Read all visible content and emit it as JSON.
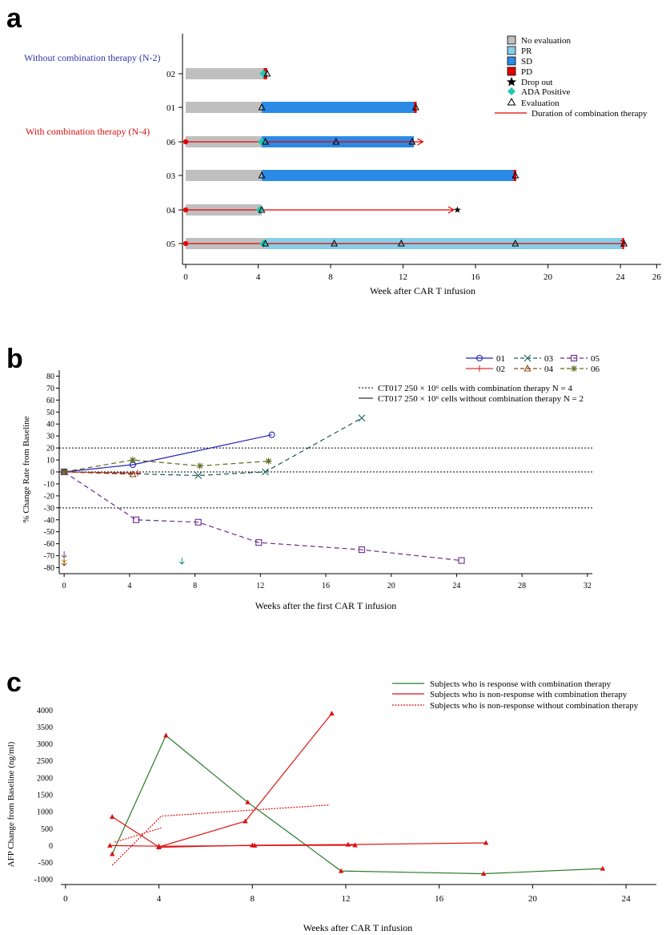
{
  "chart_data": [
    {
      "panel": "a",
      "type": "swimmer",
      "panel_label": "a",
      "xlabel": "Week after CAR T infusion",
      "xticks": [
        0,
        4,
        8,
        12,
        16,
        20,
        24,
        26
      ],
      "xlim": [
        0,
        26
      ],
      "group_labels": [
        {
          "text": "Without combination therapy (N-2)",
          "color": "#3333aa"
        },
        {
          "text": "With combination therapy (N-4)",
          "color": "#dd1111"
        }
      ],
      "legend": [
        {
          "label": "No evaluation",
          "color": "#bfbfbf",
          "kind": "box"
        },
        {
          "label": "PR",
          "color": "#87cee6",
          "kind": "box"
        },
        {
          "label": "SD",
          "color": "#2b8ae6",
          "kind": "box"
        },
        {
          "label": "PD",
          "color": "#e60000",
          "kind": "box"
        },
        {
          "label": "Drop out",
          "color": "#000000",
          "kind": "star"
        },
        {
          "label": "ADA Positive",
          "color": "#1ec8b4",
          "kind": "diamond"
        },
        {
          "label": "Evaluation",
          "color": "#000000",
          "kind": "triangle"
        },
        {
          "label": "Duration of combination therapy",
          "color": "#e60000",
          "kind": "line"
        }
      ],
      "subjects": [
        {
          "id": "02",
          "segments": [
            {
              "status": "No evaluation",
              "start": 0,
              "end": 4.3
            },
            {
              "status": "PD",
              "start": 4.3,
              "end": 4.5
            }
          ],
          "evaluations": [
            4.5
          ],
          "ada": [
            4.3
          ],
          "dropout": null,
          "combo": null
        },
        {
          "id": "01",
          "segments": [
            {
              "status": "No evaluation",
              "start": 0,
              "end": 4.2
            },
            {
              "status": "SD",
              "start": 4.2,
              "end": 12.6
            },
            {
              "status": "PD",
              "start": 12.6,
              "end": 12.75
            }
          ],
          "evaluations": [
            4.2,
            12.7
          ],
          "ada": [],
          "dropout": null,
          "combo": null
        },
        {
          "id": "06",
          "segments": [
            {
              "status": "No evaluation",
              "start": 0,
              "end": 4.2
            },
            {
              "status": "SD",
              "start": 4.2,
              "end": 12.6
            }
          ],
          "evaluations": [
            4.4,
            8.3,
            12.5
          ],
          "ada": [
            4.2
          ],
          "dropout": null,
          "combo": [
            0,
            13.1
          ]
        },
        {
          "id": "03",
          "segments": [
            {
              "status": "No evaluation",
              "start": 0,
              "end": 4.2
            },
            {
              "status": "SD",
              "start": 4.2,
              "end": 18.1
            },
            {
              "status": "PD",
              "start": 18.1,
              "end": 18.25
            }
          ],
          "evaluations": [
            4.2,
            18.2
          ],
          "ada": [],
          "dropout": null,
          "combo": null
        },
        {
          "id": "04",
          "segments": [
            {
              "status": "No evaluation",
              "start": 0,
              "end": 4.2
            }
          ],
          "evaluations": [
            4.2
          ],
          "ada": [
            4.1
          ],
          "dropout": 15.0,
          "combo": [
            0,
            14.8
          ]
        },
        {
          "id": "05",
          "segments": [
            {
              "status": "No evaluation",
              "start": 0,
              "end": 4.4
            },
            {
              "status": "PR",
              "start": 4.4,
              "end": 24.1
            },
            {
              "status": "PD",
              "start": 24.1,
              "end": 24.2
            }
          ],
          "evaluations": [
            4.4,
            8.2,
            11.9,
            18.2,
            24.2
          ],
          "ada": [
            4.3
          ],
          "dropout": null,
          "combo": [
            0,
            24.3
          ]
        }
      ]
    },
    {
      "panel": "b",
      "type": "line",
      "panel_label": "b",
      "xlabel": "Weeks after the first CAR T infusion",
      "ylabel": "% Change Rate from Baseline",
      "xticks": [
        0,
        4,
        8,
        12,
        16,
        20,
        24,
        28,
        32
      ],
      "yticks": [
        80,
        70,
        60,
        50,
        40,
        30,
        20,
        10,
        0,
        -10,
        -20,
        -30,
        -40,
        -50,
        -60,
        -70,
        -80
      ],
      "xlim": [
        -0.3,
        32.3
      ],
      "ylim": [
        -85,
        85
      ],
      "reference_lines": [
        20,
        0,
        -30
      ],
      "legend_notes": [
        {
          "style": "dotted",
          "text": "CT017 250 × 10⁶ cells with combination therapy N = 4"
        },
        {
          "style": "solid",
          "text": "CT017 250 × 10⁶ cells without combination therapy N = 2"
        }
      ],
      "series": [
        {
          "name": "01",
          "color": "#2222bb",
          "dash": "solid",
          "marker": "circle",
          "x": [
            0,
            4.2,
            12.7
          ],
          "y": [
            0,
            6,
            31
          ]
        },
        {
          "name": "02",
          "color": "#e03030",
          "dash": "solid",
          "marker": "plus",
          "x": [
            0,
            4.5
          ],
          "y": [
            0,
            -1
          ]
        },
        {
          "name": "03",
          "color": "#1b5e5a",
          "dash": "dashed",
          "marker": "x",
          "x": [
            0,
            8.2,
            12.3,
            18.2
          ],
          "y": [
            0,
            -3,
            0,
            45
          ]
        },
        {
          "name": "04",
          "color": "#8b4513",
          "dash": "dashed",
          "marker": "triangle",
          "x": [
            0,
            4.2
          ],
          "y": [
            0,
            -2
          ]
        },
        {
          "name": "05",
          "color": "#6a2c91",
          "dash": "dashed",
          "marker": "square",
          "x": [
            0,
            4.4,
            8.2,
            11.9,
            18.2,
            24.3
          ],
          "y": [
            0,
            -40,
            -42,
            -59,
            -65,
            -74
          ]
        },
        {
          "name": "06",
          "color": "#5a6a1a",
          "dash": "dashed",
          "marker": "star",
          "x": [
            0,
            4.2,
            8.3,
            12.5
          ],
          "y": [
            0,
            10,
            5,
            9
          ]
        }
      ],
      "arrows": [
        {
          "x": 0,
          "color": "#6a2c91"
        },
        {
          "x": 0,
          "color": "#c9a000"
        },
        {
          "x": 0,
          "color": "#8b4513"
        },
        {
          "x": 7.2,
          "color": "#1b8e7a"
        }
      ]
    },
    {
      "panel": "c",
      "type": "line",
      "panel_label": "c",
      "xlabel": "Weeks after CAR T infusion",
      "ylabel": "AFP Change from Baseline (ng/ml)",
      "xticks": [
        0,
        4,
        8,
        12,
        16,
        20,
        24
      ],
      "yticks": [
        4000,
        3500,
        3000,
        2500,
        2000,
        1500,
        1000,
        500,
        0,
        -500,
        -1000
      ],
      "xlim": [
        -0.2,
        25.3
      ],
      "ylim": [
        -1150,
        4150
      ],
      "legend": [
        {
          "label": "Subjects who is response with combination therapy",
          "color": "#2a7a2a",
          "style": "solid"
        },
        {
          "label": "Subjects who is non-response with combination therapy",
          "color": "#dd1111",
          "style": "solid"
        },
        {
          "label": "Subjects who is non-response without combination therapy",
          "color": "#dd1111",
          "style": "dotted"
        }
      ],
      "series": [
        {
          "group": "response-combo",
          "color": "#2a7a2a",
          "dash": "solid",
          "marker": true,
          "x": [
            2.0,
            4.3,
            7.8,
            11.8,
            17.9,
            23.0
          ],
          "y": [
            -250,
            3250,
            1280,
            -750,
            -830,
            -680
          ]
        },
        {
          "group": "nonresponse-combo",
          "color": "#dd1111",
          "dash": "solid",
          "marker": true,
          "x": [
            2.0,
            4.0,
            7.7,
            11.4
          ],
          "y": [
            850,
            -40,
            720,
            3900
          ]
        },
        {
          "group": "nonresponse-combo",
          "color": "#dd1111",
          "dash": "solid",
          "marker": true,
          "x": [
            1.9,
            4.0,
            8.1,
            12.4
          ],
          "y": [
            0,
            -20,
            0,
            10
          ]
        },
        {
          "group": "nonresponse-combo",
          "color": "#dd1111",
          "dash": "solid",
          "marker": true,
          "x": [
            4.0,
            8.0,
            12.1,
            18.0
          ],
          "y": [
            -50,
            10,
            30,
            80
          ]
        },
        {
          "group": "nonresponse-nocombo",
          "color": "#dd1111",
          "dash": "dotted",
          "marker": false,
          "x": [
            2.0,
            4.1,
            11.3
          ],
          "y": [
            -580,
            870,
            1200
          ]
        },
        {
          "group": "nonresponse-nocombo",
          "color": "#dd1111",
          "dash": "dotted",
          "marker": false,
          "x": [
            2.1,
            4.1
          ],
          "y": [
            100,
            520
          ]
        }
      ]
    }
  ]
}
